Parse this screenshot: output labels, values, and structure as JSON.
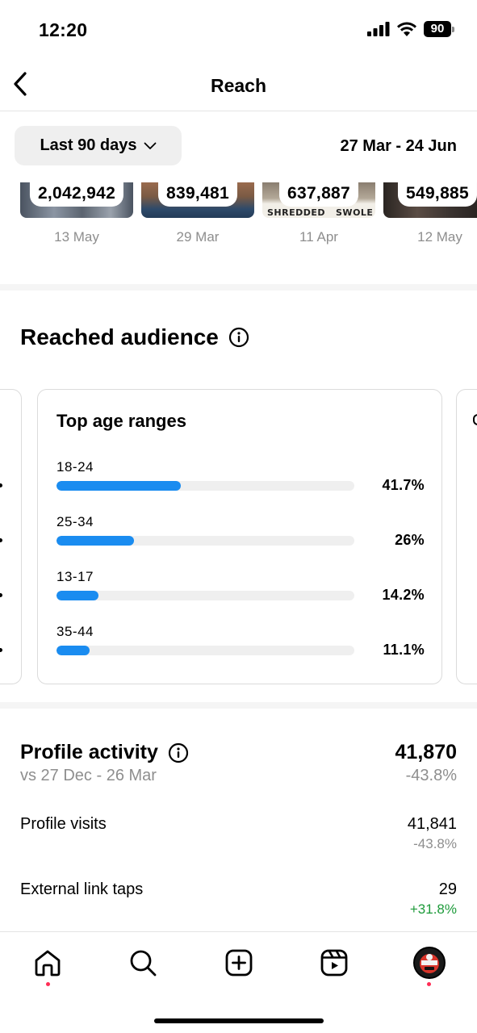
{
  "status_bar": {
    "time": "12:20",
    "battery": "90"
  },
  "header": {
    "title": "Reach"
  },
  "filter": {
    "range_label": "Last 90 days",
    "date_range": "27 Mar - 24 Jun"
  },
  "top_posts": [
    {
      "count": "2,042,942",
      "date": "13 May",
      "thumb_color": "#5b6470"
    },
    {
      "count": "839,481",
      "date": "29 Mar",
      "thumb_color": "#7a5a44"
    },
    {
      "count": "637,887",
      "date": "11 Apr",
      "thumb_color": "#8a7e70",
      "overlay_text": "SHREDDED   SWOLE"
    },
    {
      "count": "549,885",
      "date": "12 May",
      "thumb_color": "#3a3330"
    }
  ],
  "audience": {
    "heading": "Reached audience",
    "card_title": "Top age ranges",
    "bar_color": "#1a8cf0",
    "ranges": [
      {
        "label": "18-24",
        "percent_text": "41.7%",
        "value": 41.7
      },
      {
        "label": "25-34",
        "percent_text": "26%",
        "value": 26
      },
      {
        "label": "13-17",
        "percent_text": "14.2%",
        "value": 14.2
      },
      {
        "label": "35-44",
        "percent_text": "11.1%",
        "value": 11.1
      }
    ]
  },
  "profile_activity": {
    "title": "Profile activity",
    "comparison": "vs 27 Dec - 26 Mar",
    "total": "41,870",
    "total_change": "-43.8%",
    "metrics": [
      {
        "label": "Profile visits",
        "value": "41,841",
        "change": "-43.8%",
        "change_color": "#8e8e8e"
      },
      {
        "label": "External link taps",
        "value": "29",
        "change": "+31.8%",
        "change_color": "#1e9b3b"
      }
    ]
  },
  "tab_bar": {
    "tabs": [
      "home-icon",
      "search-icon",
      "create-icon",
      "reels-icon",
      "profile-avatar"
    ],
    "notification_color": "#ff2d55"
  }
}
